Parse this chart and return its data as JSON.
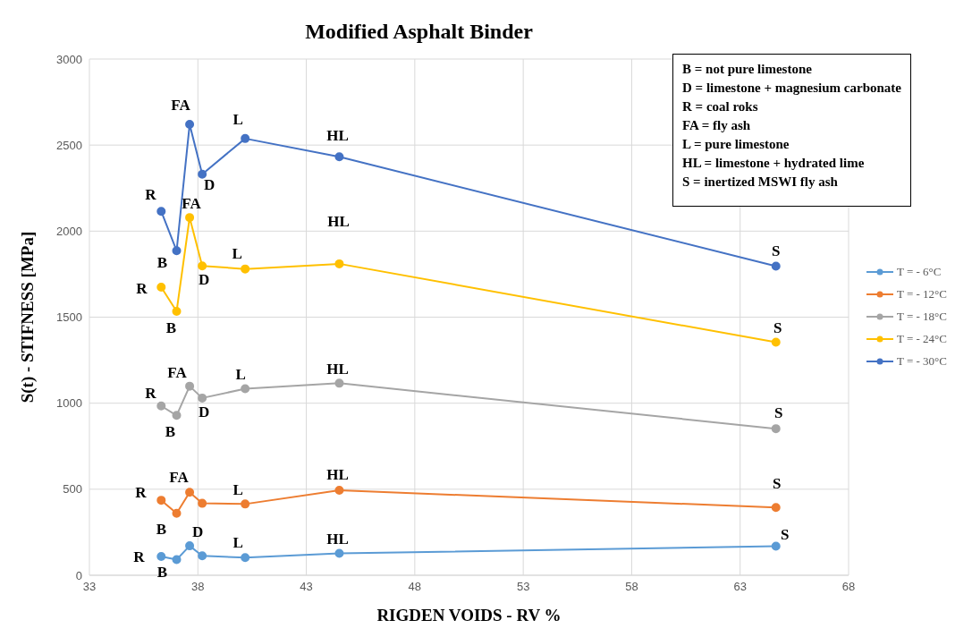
{
  "chart_data": {
    "type": "line",
    "title": "Modified Asphalt Binder",
    "xlabel": "RIGDEN VOIDS - RV %",
    "ylabel": "S(t) - STIFNESS [MPa]",
    "x": [
      36.31,
      37.02,
      37.62,
      38.2,
      40.18,
      44.52,
      64.65
    ],
    "series": [
      {
        "name": "T = - 6°C",
        "color": "#5b9bd5",
        "values": [
          109,
          91,
          171,
          113,
          103,
          127,
          169
        ]
      },
      {
        "name": "T = - 12°C",
        "color": "#ed7d31",
        "values": [
          436,
          360,
          482,
          418,
          414,
          494,
          394
        ]
      },
      {
        "name": "T = - 18°C",
        "color": "#a5a5a5",
        "values": [
          984,
          929,
          1099,
          1030,
          1084,
          1116,
          852
        ]
      },
      {
        "name": "T = - 24°C",
        "color": "#ffc000",
        "values": [
          1674,
          1534,
          2079,
          1798,
          1780,
          1810,
          1354
        ]
      },
      {
        "name": "T = - 30°C",
        "color": "#4472c4",
        "values": [
          2115,
          1886,
          2620,
          2331,
          2538,
          2432,
          1796
        ]
      }
    ],
    "xlim": [
      33,
      68
    ],
    "xticks": [
      33,
      38,
      43,
      48,
      53,
      58,
      63,
      68
    ],
    "ylim": [
      0,
      3000
    ],
    "yticks": [
      0,
      500,
      1000,
      1500,
      2000,
      2500,
      3000
    ],
    "grid": true,
    "legend": "right",
    "marker": "circle",
    "line_style": "solid",
    "annotations": [
      "B = not pure limestone\nD = limestone + magnesium carbonate\nR = coal roks\nFA = fly ash\nL = pure limestone\nHL = limestone + hydrated lime\nS = inertized MSWI fly ash",
      {
        "text": "R",
        "x": 36.31,
        "y": 2115
      },
      {
        "text": "B",
        "x": 37.02,
        "y": 1886
      },
      {
        "text": "FA",
        "x": 37.62,
        "y": 2620
      },
      {
        "text": "D",
        "x": 38.2,
        "y": 2331
      },
      {
        "text": "L",
        "x": 40.18,
        "y": 2538
      },
      {
        "text": "HL",
        "x": 44.52,
        "y": 2432
      },
      {
        "text": "S",
        "x": 64.65,
        "y": 1796
      },
      {
        "text": "R",
        "x": 36.31,
        "y": 1674
      },
      {
        "text": "B",
        "x": 37.02,
        "y": 1534
      },
      {
        "text": "FA",
        "x": 37.62,
        "y": 2079
      },
      {
        "text": "D",
        "x": 38.2,
        "y": 1798
      },
      {
        "text": "L",
        "x": 40.18,
        "y": 1780
      },
      {
        "text": "HL",
        "x": 44.52,
        "y": 1810
      },
      {
        "text": "S",
        "x": 64.65,
        "y": 1354
      },
      {
        "text": "R",
        "x": 36.31,
        "y": 984
      },
      {
        "text": "B",
        "x": 37.02,
        "y": 929
      },
      {
        "text": "FA",
        "x": 37.62,
        "y": 1099
      },
      {
        "text": "D",
        "x": 38.2,
        "y": 1030
      },
      {
        "text": "L",
        "x": 40.18,
        "y": 1084
      },
      {
        "text": "HL",
        "x": 44.52,
        "y": 1116
      },
      {
        "text": "S",
        "x": 64.65,
        "y": 852
      },
      {
        "text": "R",
        "x": 36.31,
        "y": 436
      },
      {
        "text": "B",
        "x": 37.02,
        "y": 360
      },
      {
        "text": "FA",
        "x": 37.62,
        "y": 482
      },
      {
        "text": "L",
        "x": 40.18,
        "y": 414
      },
      {
        "text": "HL",
        "x": 44.52,
        "y": 494
      },
      {
        "text": "S",
        "x": 64.65,
        "y": 394
      },
      {
        "text": "R",
        "x": 36.31,
        "y": 109
      },
      {
        "text": "B",
        "x": 37.02,
        "y": 91
      },
      {
        "text": "D",
        "x": 38.2,
        "y": 113
      },
      {
        "text": "L",
        "x": 40.18,
        "y": 103
      },
      {
        "text": "HL",
        "x": 44.52,
        "y": 127
      },
      {
        "text": "S",
        "x": 64.65,
        "y": 169
      }
    ]
  }
}
